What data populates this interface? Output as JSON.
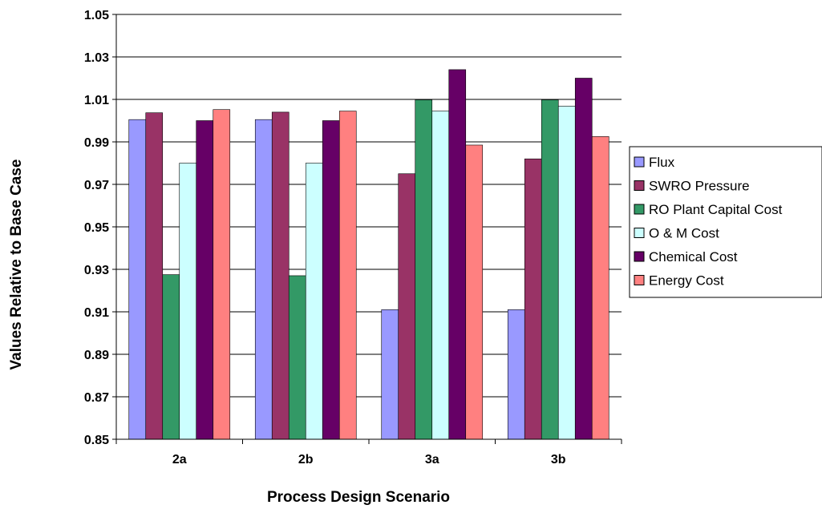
{
  "chart_data": {
    "type": "bar",
    "title": "",
    "xlabel": "Process Design Scenario",
    "ylabel": "Values Relative to Base Case",
    "categories": [
      "2a",
      "2b",
      "3a",
      "3b"
    ],
    "ylim": [
      0.85,
      1.05
    ],
    "yticks": [
      "0.85",
      "0.87",
      "0.89",
      "0.91",
      "0.93",
      "0.95",
      "0.97",
      "0.99",
      "1.01",
      "1.03",
      "1.05"
    ],
    "grid": true,
    "legend_position": "right",
    "series": [
      {
        "name": "Flux",
        "color": "#9999FF",
        "values": [
          1.0005,
          1.0005,
          0.911,
          0.911
        ]
      },
      {
        "name": "SWRO Pressure",
        "color": "#993366",
        "values": [
          1.0037,
          1.004,
          0.975,
          0.982
        ]
      },
      {
        "name": "RO Plant Capital Cost",
        "color": "#339966",
        "values": [
          0.9275,
          0.927,
          1.0098,
          1.0098
        ]
      },
      {
        "name": "O & M Cost",
        "color": "#CCFFFF",
        "values": [
          0.98,
          0.98,
          1.0045,
          1.0068
        ]
      },
      {
        "name": "Chemical Cost",
        "color": "#660066",
        "values": [
          1.0,
          1.0,
          1.024,
          1.02
        ]
      },
      {
        "name": "Energy Cost",
        "color": "#FF8080",
        "values": [
          1.0052,
          1.0045,
          0.9885,
          0.9925
        ]
      }
    ]
  }
}
